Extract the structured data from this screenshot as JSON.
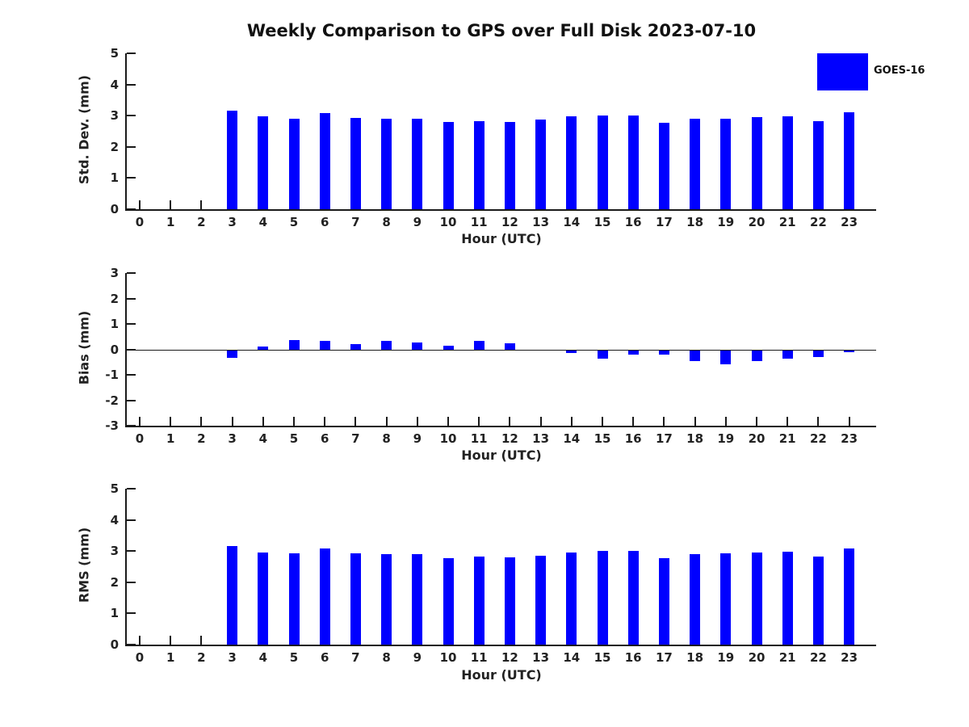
{
  "figure": {
    "title": "Weekly Comparison to GPS over Full Disk 2023-07-10",
    "legend": {
      "label": "GOES-16",
      "color": "#0000FF"
    },
    "background": "#FFFFFF",
    "text_color": "#222222"
  },
  "chart_data": [
    {
      "type": "bar",
      "name": "std-dev",
      "ylabel": "Std. Dev. (mm)",
      "xlabel": "Hour (UTC)",
      "ylim": [
        0,
        5
      ],
      "yticks": [
        0,
        1,
        2,
        3,
        4,
        5
      ],
      "grid": false,
      "legend_position": "top-right-outside",
      "categories": [
        "0",
        "1",
        "2",
        "3",
        "4",
        "5",
        "6",
        "7",
        "8",
        "9",
        "10",
        "11",
        "12",
        "13",
        "14",
        "15",
        "16",
        "17",
        "18",
        "19",
        "20",
        "21",
        "22",
        "23"
      ],
      "series": [
        {
          "name": "GOES-16",
          "color": "#0000FF",
          "values": [
            null,
            null,
            null,
            3.16,
            2.98,
            2.91,
            3.09,
            2.93,
            2.9,
            2.9,
            2.8,
            2.83,
            2.8,
            2.87,
            2.98,
            3.0,
            3.01,
            2.77,
            2.9,
            2.9,
            2.95,
            2.97,
            2.83,
            3.11
          ]
        }
      ]
    },
    {
      "type": "bar",
      "name": "bias",
      "ylabel": "Bias (mm)",
      "xlabel": "Hour (UTC)",
      "ylim": [
        -3,
        3
      ],
      "yticks": [
        3,
        2,
        1,
        0,
        -1,
        -2,
        -3
      ],
      "grid": false,
      "zero_line": true,
      "categories": [
        "0",
        "1",
        "2",
        "3",
        "4",
        "5",
        "6",
        "7",
        "8",
        "9",
        "10",
        "11",
        "12",
        "13",
        "14",
        "15",
        "16",
        "17",
        "18",
        "19",
        "20",
        "21",
        "22",
        "23"
      ],
      "series": [
        {
          "name": "GOES-16",
          "color": "#0000FF",
          "values": [
            null,
            null,
            null,
            -0.3,
            0.13,
            0.37,
            0.36,
            0.22,
            0.36,
            0.28,
            0.17,
            0.36,
            0.26,
            0.0,
            -0.1,
            -0.33,
            -0.17,
            -0.17,
            -0.4,
            -0.55,
            -0.42,
            -0.32,
            -0.26,
            -0.06
          ]
        }
      ]
    },
    {
      "type": "bar",
      "name": "rms",
      "ylabel": "RMS (mm)",
      "xlabel": "Hour (UTC)",
      "ylim": [
        0,
        5
      ],
      "yticks": [
        0,
        1,
        2,
        3,
        4,
        5
      ],
      "grid": false,
      "categories": [
        "0",
        "1",
        "2",
        "3",
        "4",
        "5",
        "6",
        "7",
        "8",
        "9",
        "10",
        "11",
        "12",
        "13",
        "14",
        "15",
        "16",
        "17",
        "18",
        "19",
        "20",
        "21",
        "22",
        "23"
      ],
      "series": [
        {
          "name": "GOES-16",
          "color": "#0000FF",
          "values": [
            null,
            null,
            null,
            3.17,
            2.96,
            2.93,
            3.08,
            2.93,
            2.91,
            2.9,
            2.78,
            2.83,
            2.8,
            2.86,
            2.96,
            3.0,
            3.0,
            2.76,
            2.9,
            2.92,
            2.96,
            2.97,
            2.82,
            3.09
          ]
        }
      ]
    }
  ]
}
